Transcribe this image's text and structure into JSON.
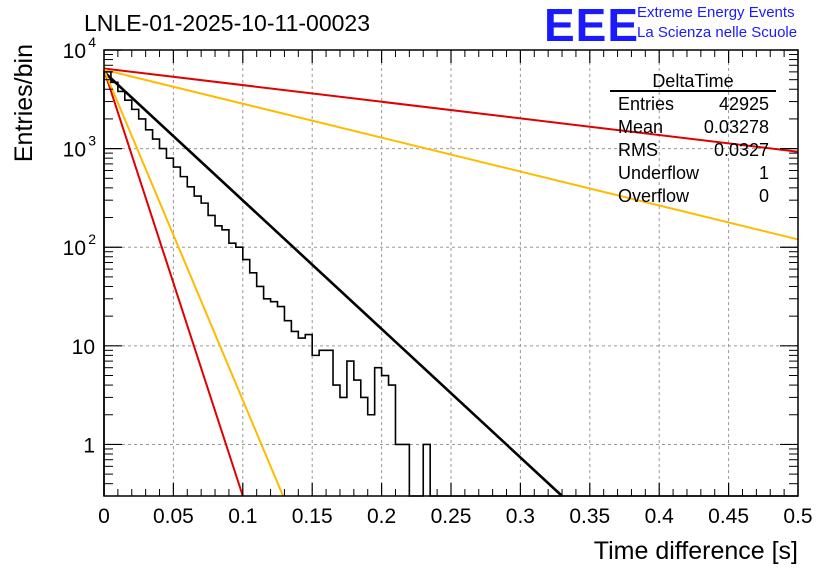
{
  "header": {
    "title": "LNLE-01-2025-10-11-00023",
    "logo": "EEE",
    "logo_line1": "Extreme Energy Events",
    "logo_line2": "La Scienza nelle Scuole"
  },
  "stats": {
    "name": "DeltaTime",
    "rows": [
      {
        "label": "Entries",
        "value": "42925"
      },
      {
        "label": "Mean",
        "value": "0.03278"
      },
      {
        "label": "RMS",
        "value": "0.0327"
      },
      {
        "label": "Underflow",
        "value": "1"
      },
      {
        "label": "Overflow",
        "value": "0"
      }
    ]
  },
  "colors": {
    "red": "#e00000",
    "orange": "#ffbb00",
    "black": "#000000",
    "grid": "#999999"
  },
  "chart_data": {
    "type": "line",
    "title": "LNLE-01-2025-10-11-00023",
    "xlabel": "Time difference [s]",
    "ylabel": "Entries/bin",
    "xlim": [
      0,
      0.5
    ],
    "ylim": [
      0.3,
      10000
    ],
    "yscale": "log",
    "grid": true,
    "x_ticks": [
      "0",
      "0.05",
      "0.1",
      "0.15",
      "0.2",
      "0.25",
      "0.3",
      "0.35",
      "0.4",
      "0.45",
      "0.5"
    ],
    "y_ticks": [
      {
        "value": 1,
        "label": "1",
        "sup": ""
      },
      {
        "value": 10,
        "label": "10",
        "sup": ""
      },
      {
        "value": 100,
        "label": "10",
        "sup": "2"
      },
      {
        "value": 1000,
        "label": "10",
        "sup": "3"
      },
      {
        "value": 10000,
        "label": "10",
        "sup": "4"
      }
    ],
    "histogram": {
      "name": "DeltaTime",
      "bin_width": 0.005,
      "values": [
        6000,
        4700,
        3800,
        3100,
        2500,
        2000,
        1550,
        1250,
        1000,
        800,
        650,
        520,
        410,
        330,
        280,
        210,
        165,
        150,
        110,
        100,
        75,
        55,
        40,
        30,
        28,
        25,
        18,
        14,
        12,
        13,
        8,
        9,
        9,
        4,
        3,
        7,
        4.5,
        3,
        2,
        6,
        5,
        4,
        1,
        1,
        0.3,
        0.3,
        1,
        0.3,
        0.3,
        0.3,
        0.3,
        0.3,
        0.3,
        0.3,
        0.3,
        0.3,
        0.3,
        0.3,
        0.3,
        0.3,
        0.3,
        0.3,
        0.3,
        0.3,
        0.3,
        0.3,
        0.3,
        0.3,
        0.3,
        0.3,
        0.3,
        0.3,
        0.3,
        0.3,
        0.3,
        0.3,
        0.3,
        0.3,
        0.3,
        0.3,
        0.3,
        0.3,
        0.3,
        0.3,
        0.3,
        0.3,
        0.3,
        0.3,
        0.3,
        0.3,
        0.3,
        0.3,
        0.3,
        0.3,
        0.3,
        0.3,
        0.3,
        0.3,
        0.3,
        0.3
      ]
    },
    "series": [
      {
        "name": "fit",
        "color": "#000000",
        "x": [
          0,
          0.33
        ],
        "y": [
          6000,
          0.3
        ]
      },
      {
        "name": "steep-red",
        "color": "#e00000",
        "x": [
          0,
          0.1
        ],
        "y": [
          6300,
          0.3
        ]
      },
      {
        "name": "steep-orange",
        "color": "#ffbb00",
        "x": [
          0,
          0.129
        ],
        "y": [
          6300,
          0.3
        ]
      },
      {
        "name": "slow-red",
        "color": "#e00000",
        "x": [
          0,
          0.5
        ],
        "y": [
          6500,
          930
        ]
      },
      {
        "name": "slow-orange",
        "color": "#ffbb00",
        "x": [
          0,
          0.5
        ],
        "y": [
          6300,
          120
        ]
      }
    ]
  }
}
